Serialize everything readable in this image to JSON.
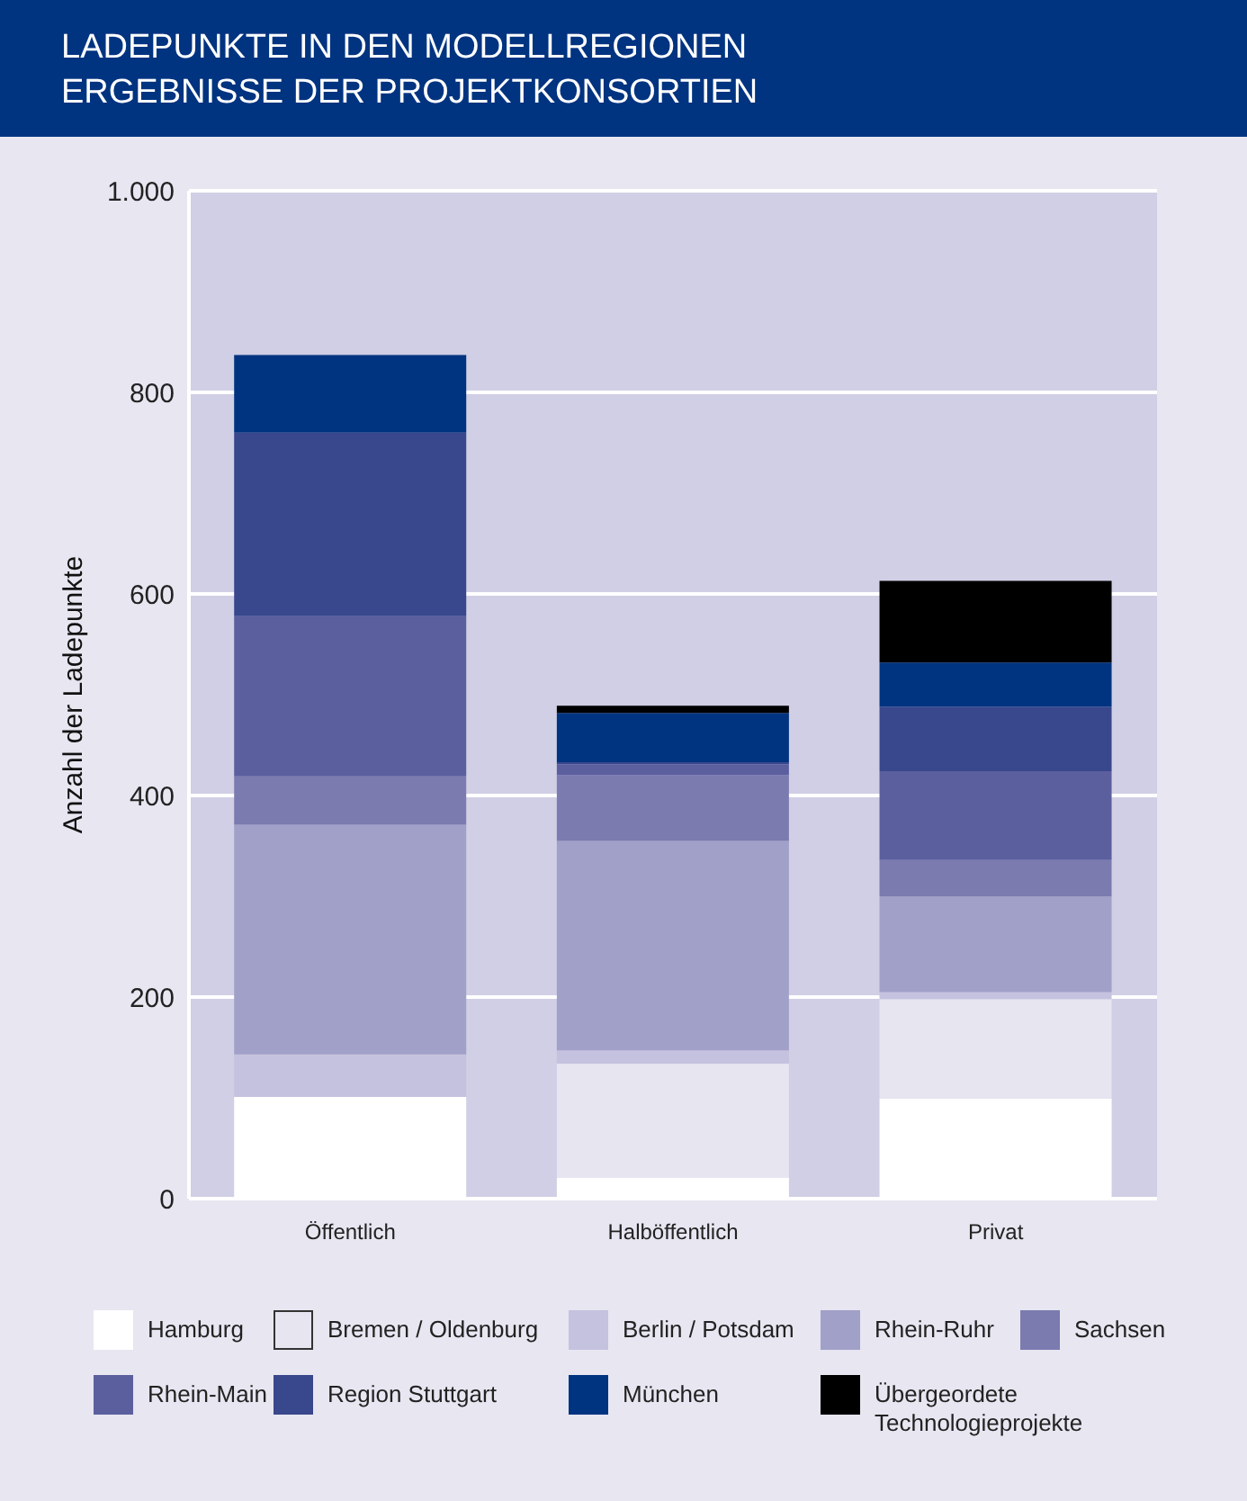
{
  "chart_data": {
    "type": "bar",
    "title": "LADEPUNKTE IN DEN MODELLREGIONEN",
    "subtitle": "ERGEBNISSE DER PROJEKTKONSORTIEN",
    "ylabel": "Anzahl der Ladepunkte",
    "categories": [
      "Öffentlich",
      "Halböffentlich",
      "Privat"
    ],
    "stacked": true,
    "ylim": [
      0,
      1000
    ],
    "yticks": [
      0,
      200,
      400,
      600,
      800,
      {
        "value": 1000,
        "label": "1.000"
      }
    ],
    "grid": "y",
    "legend": "bottom",
    "series": [
      {
        "name": "Hamburg",
        "color": "#ffffff",
        "values": [
          101,
          21,
          99
        ]
      },
      {
        "name": "Bremen / Oldenburg",
        "color": "#e6e5f0",
        "values": [
          0,
          113,
          99
        ]
      },
      {
        "name": "Berlin / Potsdam",
        "color": "#c4c2de",
        "values": [
          42,
          13,
          7
        ]
      },
      {
        "name": "Rhein-Ruhr",
        "color": "#a1a0c8",
        "values": [
          228,
          208,
          95
        ]
      },
      {
        "name": "Sachsen",
        "color": "#7b7bb0",
        "values": [
          48,
          65,
          36
        ]
      },
      {
        "name": "Rhein-Main",
        "color": "#5c5f9e",
        "values": [
          159,
          11,
          88
        ]
      },
      {
        "name": "Region Stuttgart",
        "color": "#39478c",
        "values": [
          182,
          2,
          64
        ]
      },
      {
        "name": "München",
        "color": "#003380",
        "values": [
          77,
          49,
          44
        ]
      },
      {
        "name": "Übergeordete Technologieprojekte",
        "color": "#000000",
        "values": [
          0,
          7,
          81
        ]
      }
    ]
  }
}
